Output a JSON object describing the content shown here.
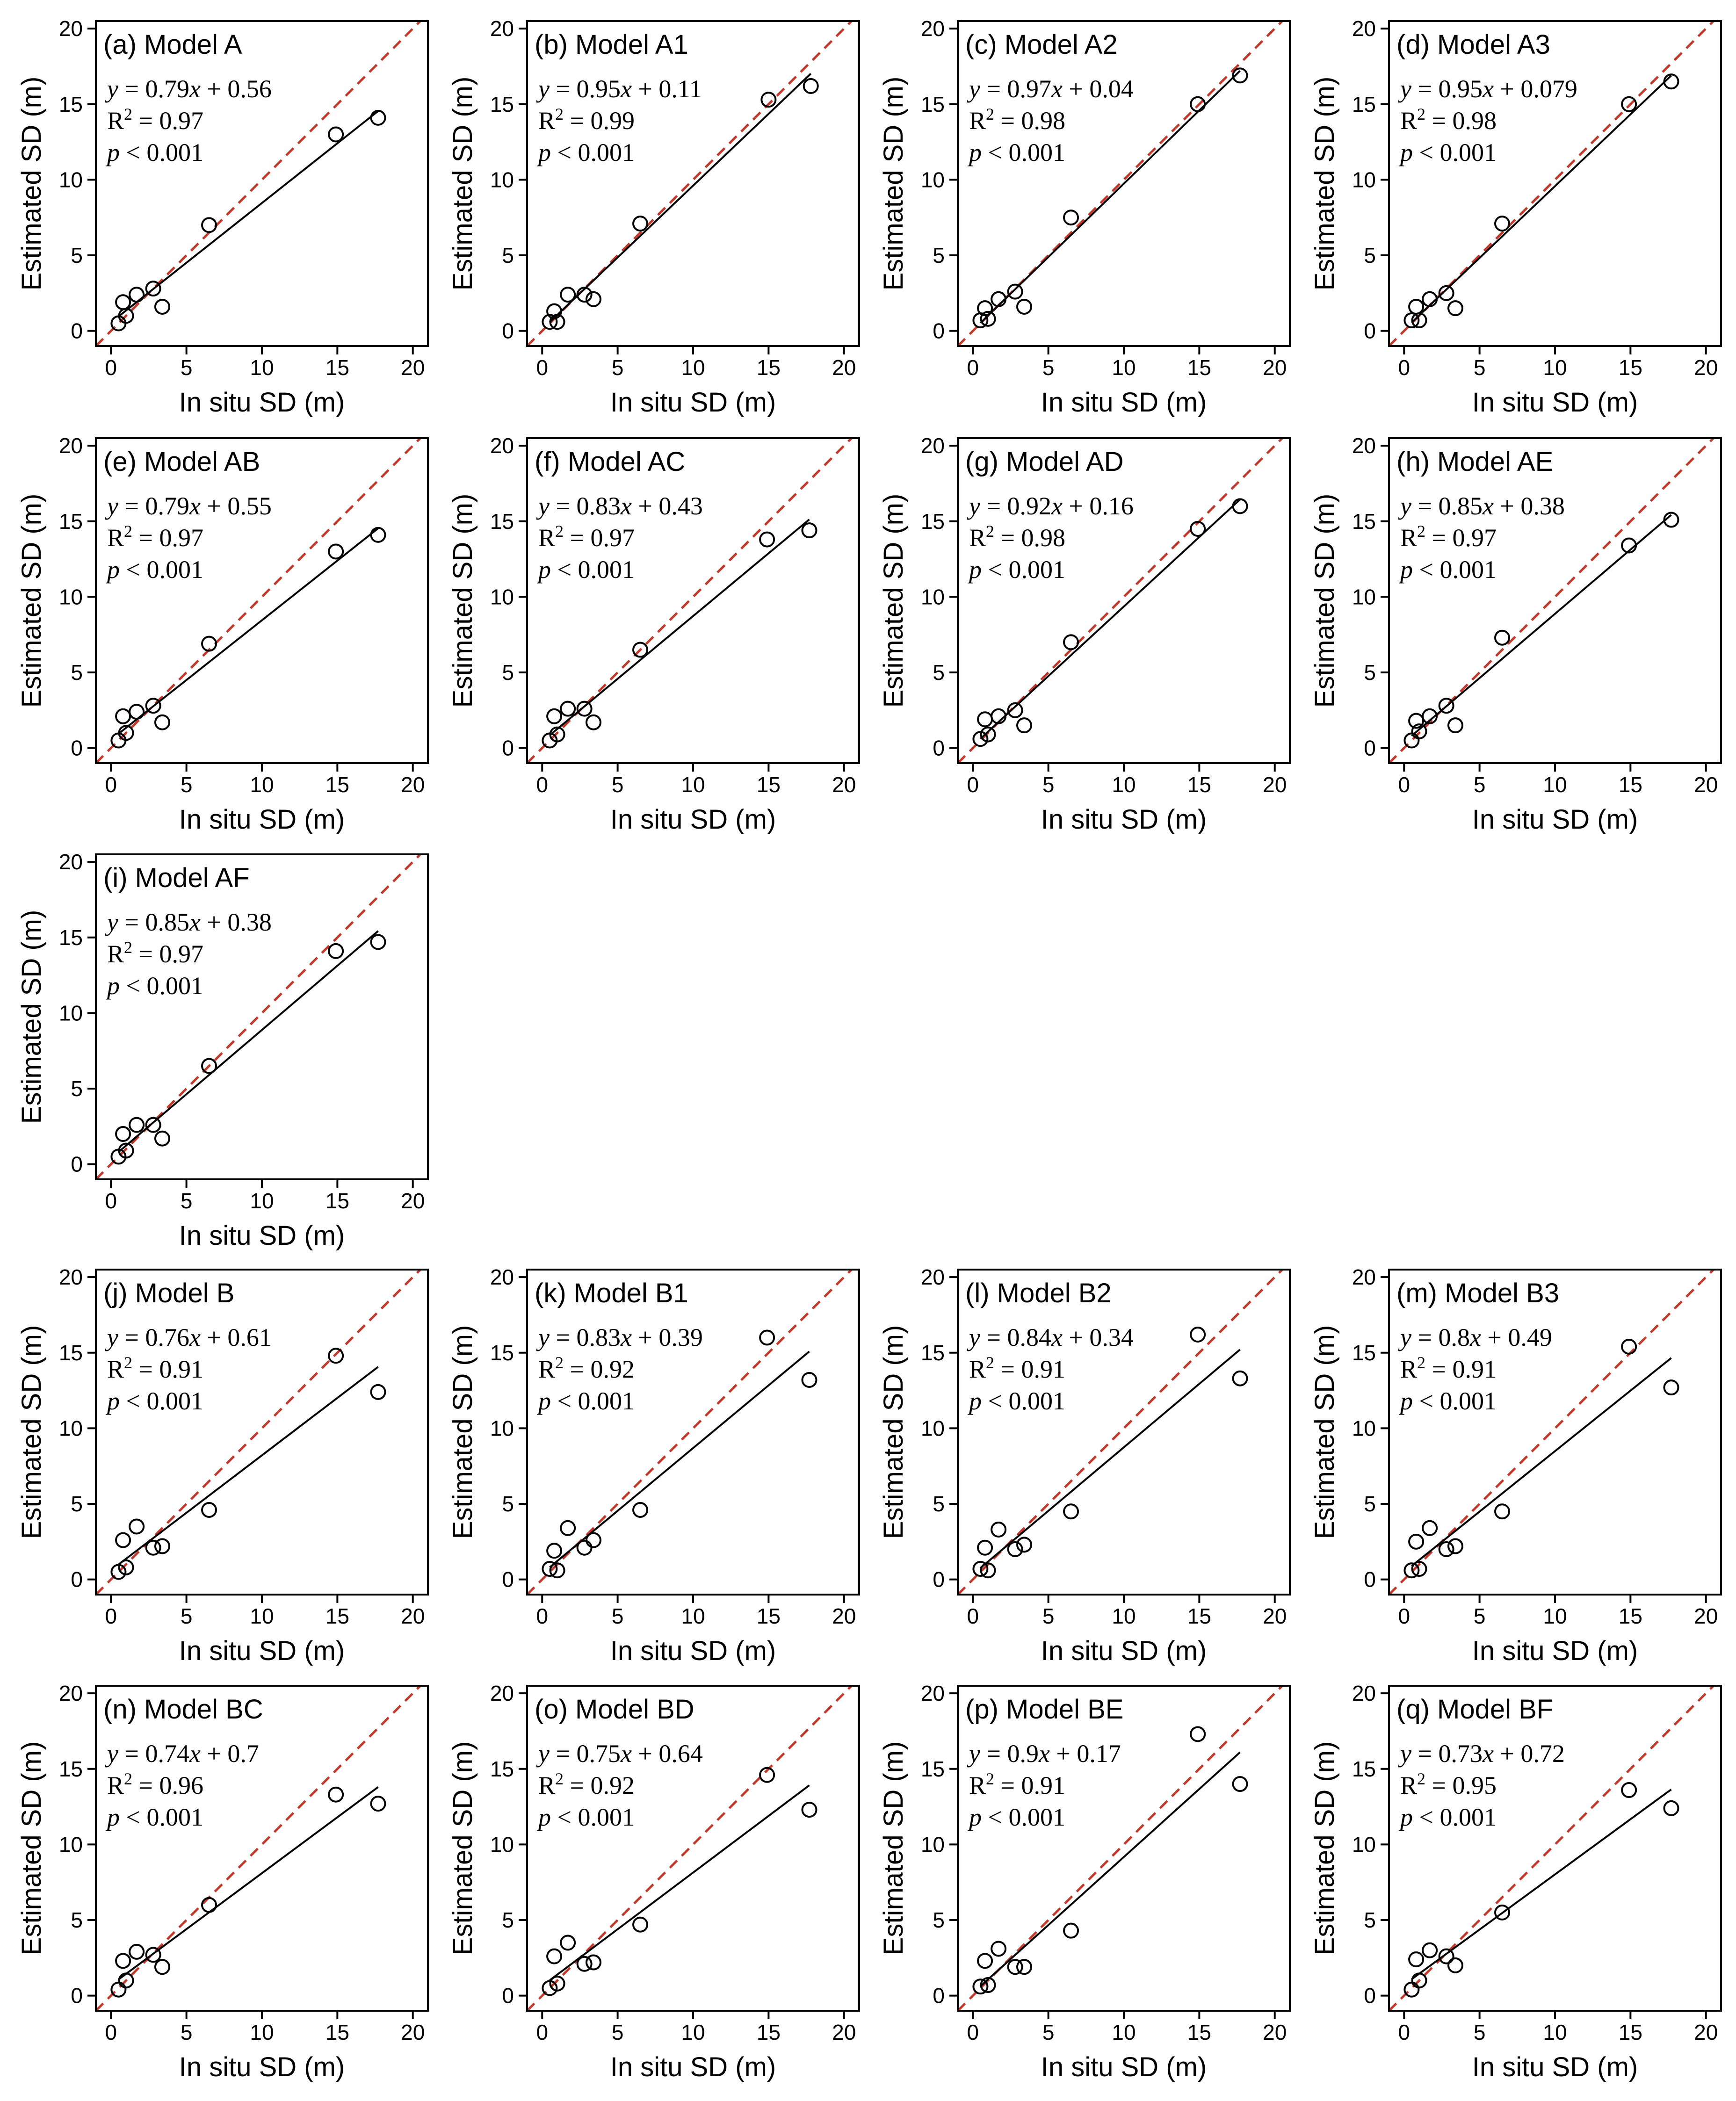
{
  "colors": {
    "identity_line": "#c0392b",
    "fit_line": "#000000",
    "marker": "#000000",
    "axis": "#000000",
    "background": "#ffffff"
  },
  "chart_data": [
    {
      "panel": "a",
      "title": "(a) Model A",
      "type": "scatter",
      "xlabel": "In situ SD (m)",
      "ylabel": "Estimated SD (m)",
      "xlim": [
        -1,
        21
      ],
      "ylim": [
        -1,
        20.5
      ],
      "xticks": [
        "0",
        "5",
        "10",
        "15",
        "20"
      ],
      "yticks": [
        "0",
        "5",
        "10",
        "15",
        "20"
      ],
      "fit": {
        "slope": 0.79,
        "intercept": 0.56
      },
      "eq_lhs": "y",
      "eq_rhs": "0.79x + 0.56",
      "r2_label": "R",
      "r2_value": "0.97",
      "p_label": "p",
      "p_value": "0.001",
      "x": [
        0.5,
        0.8,
        1.0,
        1.7,
        2.8,
        3.4,
        6.5,
        14.9,
        17.7
      ],
      "y": [
        0.5,
        1.9,
        1.0,
        2.4,
        2.8,
        1.6,
        7.0,
        13.0,
        14.1
      ]
    },
    {
      "panel": "b",
      "title": "(b) Model A1",
      "type": "scatter",
      "xlabel": "In situ SD (m)",
      "ylabel": "Estimated SD (m)",
      "xlim": [
        -1,
        21
      ],
      "ylim": [
        -1,
        20.5
      ],
      "xticks": [
        "0",
        "5",
        "10",
        "15",
        "20"
      ],
      "yticks": [
        "0",
        "5",
        "10",
        "15",
        "20"
      ],
      "fit": {
        "slope": 0.95,
        "intercept": 0.11
      },
      "eq_lhs": "y",
      "eq_rhs": "0.95x + 0.11",
      "r2_label": "R",
      "r2_value": "0.99",
      "p_label": "p",
      "p_value": "0.001",
      "x": [
        0.5,
        0.8,
        1.0,
        1.7,
        2.8,
        3.4,
        6.5,
        15.0,
        17.8
      ],
      "y": [
        0.6,
        1.3,
        0.6,
        2.4,
        2.4,
        2.1,
        7.1,
        15.3,
        16.2
      ]
    },
    {
      "panel": "c",
      "title": "(c) Model A2",
      "type": "scatter",
      "xlabel": "In situ SD (m)",
      "ylabel": "Estimated SD (m)",
      "xlim": [
        -1,
        21
      ],
      "ylim": [
        -1,
        20.5
      ],
      "xticks": [
        "0",
        "5",
        "10",
        "15",
        "20"
      ],
      "yticks": [
        "0",
        "5",
        "10",
        "15",
        "20"
      ],
      "fit": {
        "slope": 0.97,
        "intercept": 0.04
      },
      "eq_lhs": "y",
      "eq_rhs": "0.97x + 0.04",
      "r2_label": "R",
      "r2_value": "0.98",
      "p_label": "p",
      "p_value": "0.001",
      "x": [
        0.5,
        0.8,
        1.0,
        1.7,
        2.8,
        3.4,
        6.5,
        14.9,
        17.7
      ],
      "y": [
        0.7,
        1.5,
        0.8,
        2.1,
        2.6,
        1.6,
        7.5,
        15.0,
        16.9
      ]
    },
    {
      "panel": "d",
      "title": "(d) Model A3",
      "type": "scatter",
      "xlabel": "In situ SD (m)",
      "ylabel": "Estimated SD (m)",
      "xlim": [
        -1,
        21
      ],
      "ylim": [
        -1,
        20.5
      ],
      "xticks": [
        "0",
        "5",
        "10",
        "15",
        "20"
      ],
      "yticks": [
        "0",
        "5",
        "10",
        "15",
        "20"
      ],
      "fit": {
        "slope": 0.95,
        "intercept": 0.079
      },
      "eq_lhs": "y",
      "eq_rhs": "0.95x + 0.079",
      "r2_label": "R",
      "r2_value": "0.98",
      "p_label": "p",
      "p_value": "0.001",
      "x": [
        0.5,
        0.8,
        1.0,
        1.7,
        2.8,
        3.4,
        6.5,
        14.9,
        17.7
      ],
      "y": [
        0.7,
        1.6,
        0.7,
        2.1,
        2.5,
        1.5,
        7.1,
        15.0,
        16.5
      ]
    },
    {
      "panel": "e",
      "title": "(e) Model AB",
      "type": "scatter",
      "xlabel": "In situ SD (m)",
      "ylabel": "Estimated SD (m)",
      "xlim": [
        -1,
        21
      ],
      "ylim": [
        -1,
        20.5
      ],
      "xticks": [
        "0",
        "5",
        "10",
        "15",
        "20"
      ],
      "yticks": [
        "0",
        "5",
        "10",
        "15",
        "20"
      ],
      "fit": {
        "slope": 0.79,
        "intercept": 0.55
      },
      "eq_lhs": "y",
      "eq_rhs": "0.79x + 0.55",
      "r2_label": "R",
      "r2_value": "0.97",
      "p_label": "p",
      "p_value": "0.001",
      "x": [
        0.5,
        0.8,
        1.0,
        1.7,
        2.8,
        3.4,
        6.5,
        14.9,
        17.7
      ],
      "y": [
        0.5,
        2.1,
        1.0,
        2.4,
        2.8,
        1.7,
        6.9,
        13.0,
        14.1
      ]
    },
    {
      "panel": "f",
      "title": "(f) Model AC",
      "type": "scatter",
      "xlabel": "In situ SD (m)",
      "ylabel": "Estimated SD (m)",
      "xlim": [
        -1,
        21
      ],
      "ylim": [
        -1,
        20.5
      ],
      "xticks": [
        "0",
        "5",
        "10",
        "15",
        "20"
      ],
      "yticks": [
        "0",
        "5",
        "10",
        "15",
        "20"
      ],
      "fit": {
        "slope": 0.83,
        "intercept": 0.43
      },
      "eq_lhs": "y",
      "eq_rhs": "0.83x + 0.43",
      "r2_label": "R",
      "r2_value": "0.97",
      "p_label": "p",
      "p_value": "0.001",
      "x": [
        0.5,
        0.8,
        1.0,
        1.7,
        2.8,
        3.4,
        6.5,
        14.9,
        17.7
      ],
      "y": [
        0.5,
        2.1,
        0.9,
        2.6,
        2.6,
        1.7,
        6.5,
        13.8,
        14.4
      ]
    },
    {
      "panel": "g",
      "title": "(g) Model AD",
      "type": "scatter",
      "xlabel": "In situ SD (m)",
      "ylabel": "Estimated SD (m)",
      "xlim": [
        -1,
        21
      ],
      "ylim": [
        -1,
        20.5
      ],
      "xticks": [
        "0",
        "5",
        "10",
        "15",
        "20"
      ],
      "yticks": [
        "0",
        "5",
        "10",
        "15",
        "20"
      ],
      "fit": {
        "slope": 0.92,
        "intercept": 0.16
      },
      "eq_lhs": "y",
      "eq_rhs": "0.92x + 0.16",
      "r2_label": "R",
      "r2_value": "0.98",
      "p_label": "p",
      "p_value": "0.001",
      "x": [
        0.5,
        0.8,
        1.0,
        1.7,
        2.8,
        3.4,
        6.5,
        14.9,
        17.7
      ],
      "y": [
        0.6,
        1.9,
        0.9,
        2.1,
        2.5,
        1.5,
        7.0,
        14.5,
        16.0
      ]
    },
    {
      "panel": "h",
      "title": "(h) Model AE",
      "type": "scatter",
      "xlabel": "In situ SD (m)",
      "ylabel": "Estimated SD (m)",
      "xlim": [
        -1,
        21
      ],
      "ylim": [
        -1,
        20.5
      ],
      "xticks": [
        "0",
        "5",
        "10",
        "15",
        "20"
      ],
      "yticks": [
        "0",
        "5",
        "10",
        "15",
        "20"
      ],
      "fit": {
        "slope": 0.85,
        "intercept": 0.38
      },
      "eq_lhs": "y",
      "eq_rhs": "0.85x + 0.38",
      "r2_label": "R",
      "r2_value": "0.97",
      "p_label": "p",
      "p_value": "0.001",
      "x": [
        0.5,
        0.8,
        1.0,
        1.7,
        2.8,
        3.4,
        6.5,
        14.9,
        17.7
      ],
      "y": [
        0.5,
        1.8,
        1.1,
        2.1,
        2.8,
        1.5,
        7.3,
        13.4,
        15.1
      ]
    },
    {
      "panel": "i",
      "title": "(i) Model AF",
      "type": "scatter",
      "xlabel": "In situ SD (m)",
      "ylabel": "Estimated SD (m)",
      "xlim": [
        -1,
        21
      ],
      "ylim": [
        -1,
        20.5
      ],
      "xticks": [
        "0",
        "5",
        "10",
        "15",
        "20"
      ],
      "yticks": [
        "0",
        "5",
        "10",
        "15",
        "20"
      ],
      "fit": {
        "slope": 0.85,
        "intercept": 0.38
      },
      "eq_lhs": "y",
      "eq_rhs": "0.85x + 0.38",
      "r2_label": "R",
      "r2_value": "0.97",
      "p_label": "p",
      "p_value": "0.001",
      "x": [
        0.5,
        0.8,
        1.0,
        1.7,
        2.8,
        3.4,
        6.5,
        14.9,
        17.7
      ],
      "y": [
        0.5,
        2.0,
        0.9,
        2.6,
        2.6,
        1.7,
        6.5,
        14.1,
        14.7
      ]
    },
    {
      "panel": "j",
      "title": "(j) Model B",
      "type": "scatter",
      "xlabel": "In situ SD (m)",
      "ylabel": "Estimated SD (m)",
      "xlim": [
        -1,
        21
      ],
      "ylim": [
        -1,
        20.5
      ],
      "xticks": [
        "0",
        "5",
        "10",
        "15",
        "20"
      ],
      "yticks": [
        "0",
        "5",
        "10",
        "15",
        "20"
      ],
      "fit": {
        "slope": 0.76,
        "intercept": 0.61
      },
      "eq_lhs": "y",
      "eq_rhs": "0.76x + 0.61",
      "r2_label": "R",
      "r2_value": "0.91",
      "p_label": "p",
      "p_value": "0.001",
      "x": [
        0.5,
        0.8,
        1.0,
        1.7,
        2.8,
        3.4,
        6.5,
        14.9,
        17.7
      ],
      "y": [
        0.5,
        2.6,
        0.8,
        3.5,
        2.1,
        2.2,
        4.6,
        14.8,
        12.4
      ]
    },
    {
      "panel": "k",
      "title": "(k) Model B1",
      "type": "scatter",
      "xlabel": "In situ SD (m)",
      "ylabel": "Estimated SD (m)",
      "xlim": [
        -1,
        21
      ],
      "ylim": [
        -1,
        20.5
      ],
      "xticks": [
        "0",
        "5",
        "10",
        "15",
        "20"
      ],
      "yticks": [
        "0",
        "5",
        "10",
        "15",
        "20"
      ],
      "fit": {
        "slope": 0.83,
        "intercept": 0.39
      },
      "eq_lhs": "y",
      "eq_rhs": "0.83x + 0.39",
      "r2_label": "R",
      "r2_value": "0.92",
      "p_label": "p",
      "p_value": "0.001",
      "x": [
        0.5,
        0.8,
        1.0,
        1.7,
        2.8,
        3.4,
        6.5,
        14.9,
        17.7
      ],
      "y": [
        0.7,
        1.9,
        0.6,
        3.4,
        2.1,
        2.6,
        4.6,
        16.0,
        13.2
      ]
    },
    {
      "panel": "l",
      "title": "(l) Model B2",
      "type": "scatter",
      "xlabel": "In situ SD (m)",
      "ylabel": "Estimated SD (m)",
      "xlim": [
        -1,
        21
      ],
      "ylim": [
        -1,
        20.5
      ],
      "xticks": [
        "0",
        "5",
        "10",
        "15",
        "20"
      ],
      "yticks": [
        "0",
        "5",
        "10",
        "15",
        "20"
      ],
      "fit": {
        "slope": 0.84,
        "intercept": 0.34
      },
      "eq_lhs": "y",
      "eq_rhs": "0.84x + 0.34",
      "r2_label": "R",
      "r2_value": "0.91",
      "p_label": "p",
      "p_value": "0.001",
      "x": [
        0.5,
        0.8,
        1.0,
        1.7,
        2.8,
        3.4,
        6.5,
        14.9,
        17.7
      ],
      "y": [
        0.7,
        2.1,
        0.6,
        3.3,
        2.0,
        2.3,
        4.5,
        16.2,
        13.3
      ]
    },
    {
      "panel": "m",
      "title": "(m) Model B3",
      "type": "scatter",
      "xlabel": "In situ SD (m)",
      "ylabel": "Estimated SD (m)",
      "xlim": [
        -1,
        21
      ],
      "ylim": [
        -1,
        20.5
      ],
      "xticks": [
        "0",
        "5",
        "10",
        "15",
        "20"
      ],
      "yticks": [
        "0",
        "5",
        "10",
        "15",
        "20"
      ],
      "fit": {
        "slope": 0.8,
        "intercept": 0.49
      },
      "eq_lhs": "y",
      "eq_rhs": "0.8x + 0.49",
      "r2_label": "R",
      "r2_value": "0.91",
      "p_label": "p",
      "p_value": "0.001",
      "x": [
        0.5,
        0.8,
        1.0,
        1.7,
        2.8,
        3.4,
        6.5,
        14.9,
        17.7
      ],
      "y": [
        0.6,
        2.5,
        0.7,
        3.4,
        2.0,
        2.2,
        4.5,
        15.4,
        12.7
      ]
    },
    {
      "panel": "n",
      "title": "(n) Model BC",
      "type": "scatter",
      "xlabel": "In situ SD (m)",
      "ylabel": "Estimated SD (m)",
      "xlim": [
        -1,
        21
      ],
      "ylim": [
        -1,
        20.5
      ],
      "xticks": [
        "0",
        "5",
        "10",
        "15",
        "20"
      ],
      "yticks": [
        "0",
        "5",
        "10",
        "15",
        "20"
      ],
      "fit": {
        "slope": 0.74,
        "intercept": 0.7
      },
      "eq_lhs": "y",
      "eq_rhs": "0.74x + 0.7",
      "r2_label": "R",
      "r2_value": "0.96",
      "p_label": "p",
      "p_value": "0.001",
      "x": [
        0.5,
        0.8,
        1.0,
        1.7,
        2.8,
        3.4,
        6.5,
        14.9,
        17.7
      ],
      "y": [
        0.4,
        2.3,
        1.0,
        2.9,
        2.7,
        1.9,
        6.0,
        13.3,
        12.7
      ]
    },
    {
      "panel": "o",
      "title": "(o) Model BD",
      "type": "scatter",
      "xlabel": "In situ SD (m)",
      "ylabel": "Estimated SD (m)",
      "xlim": [
        -1,
        21
      ],
      "ylim": [
        -1,
        20.5
      ],
      "xticks": [
        "0",
        "5",
        "10",
        "15",
        "20"
      ],
      "yticks": [
        "0",
        "5",
        "10",
        "15",
        "20"
      ],
      "fit": {
        "slope": 0.75,
        "intercept": 0.64
      },
      "eq_lhs": "y",
      "eq_rhs": "0.75x + 0.64",
      "r2_label": "R",
      "r2_value": "0.92",
      "p_label": "p",
      "p_value": "0.001",
      "x": [
        0.5,
        0.8,
        1.0,
        1.7,
        2.8,
        3.4,
        6.5,
        14.9,
        17.7
      ],
      "y": [
        0.5,
        2.6,
        0.8,
        3.5,
        2.1,
        2.2,
        4.7,
        14.6,
        12.3
      ]
    },
    {
      "panel": "p",
      "title": "(p) Model BE",
      "type": "scatter",
      "xlabel": "In situ SD (m)",
      "ylabel": "Estimated SD (m)",
      "xlim": [
        -1,
        21
      ],
      "ylim": [
        -1,
        20.5
      ],
      "xticks": [
        "0",
        "5",
        "10",
        "15",
        "20"
      ],
      "yticks": [
        "0",
        "5",
        "10",
        "15",
        "20"
      ],
      "fit": {
        "slope": 0.9,
        "intercept": 0.17
      },
      "eq_lhs": "y",
      "eq_rhs": "0.9x + 0.17",
      "r2_label": "R",
      "r2_value": "0.91",
      "p_label": "p",
      "p_value": "0.001",
      "x": [
        0.5,
        0.8,
        1.0,
        1.7,
        2.8,
        3.4,
        6.5,
        14.9,
        17.7
      ],
      "y": [
        0.6,
        2.3,
        0.7,
        3.1,
        1.9,
        1.9,
        4.3,
        17.3,
        14.0
      ]
    },
    {
      "panel": "q",
      "title": "(q) Model BF",
      "type": "scatter",
      "xlabel": "In situ SD (m)",
      "ylabel": "Estimated SD (m)",
      "xlim": [
        -1,
        21
      ],
      "ylim": [
        -1,
        20.5
      ],
      "xticks": [
        "0",
        "5",
        "10",
        "15",
        "20"
      ],
      "yticks": [
        "0",
        "5",
        "10",
        "15",
        "20"
      ],
      "fit": {
        "slope": 0.73,
        "intercept": 0.72
      },
      "eq_lhs": "y",
      "eq_rhs": "0.73x + 0.72",
      "r2_label": "R",
      "r2_value": "0.95",
      "p_label": "p",
      "p_value": "0.001",
      "x": [
        0.5,
        0.8,
        1.0,
        1.7,
        2.8,
        3.4,
        6.5,
        14.9,
        17.7
      ],
      "y": [
        0.4,
        2.4,
        1.0,
        3.0,
        2.6,
        2.0,
        5.5,
        13.6,
        12.4
      ]
    }
  ]
}
